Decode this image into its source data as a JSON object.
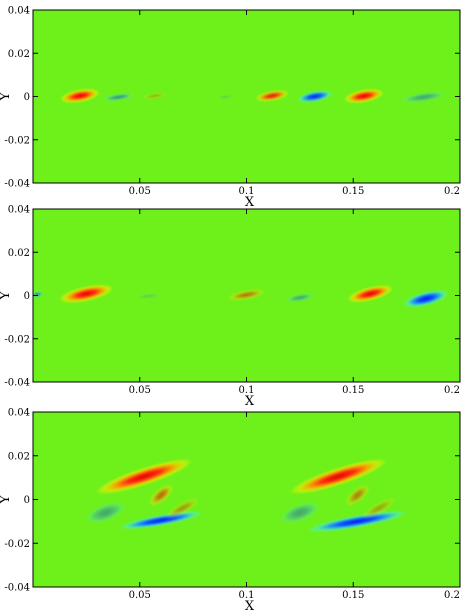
{
  "chart_data": [
    {
      "type": "heatmap",
      "xlabel": "X",
      "ylabel": "Y",
      "xlim": [
        0,
        0.2
      ],
      "ylim": [
        -0.04,
        0.04
      ],
      "xticks": [
        "0.05",
        "0.1",
        "0.15",
        "0.2"
      ],
      "yticks": [
        "0.04",
        "0.02",
        "0",
        "-0.02",
        "-0.04"
      ],
      "background_color": "#6ef01a",
      "blobs": [
        {
          "x": 0.022,
          "y": 0.0003,
          "rx": 0.0095,
          "ry": 0.003,
          "angle": 10,
          "sign": 1,
          "strength": 1.0
        },
        {
          "x": 0.04,
          "y": -0.0003,
          "rx": 0.0075,
          "ry": 0.0016,
          "angle": 8,
          "sign": -1,
          "strength": 0.45
        },
        {
          "x": 0.057,
          "y": 0.0003,
          "rx": 0.006,
          "ry": 0.0012,
          "angle": 8,
          "sign": 1,
          "strength": 0.3
        },
        {
          "x": 0.09,
          "y": -0.0002,
          "rx": 0.004,
          "ry": 0.0008,
          "angle": 5,
          "sign": -1,
          "strength": 0.18
        },
        {
          "x": 0.112,
          "y": 0.0003,
          "rx": 0.008,
          "ry": 0.0024,
          "angle": 10,
          "sign": 1,
          "strength": 0.85
        },
        {
          "x": 0.132,
          "y": 0.0,
          "rx": 0.0085,
          "ry": 0.0025,
          "angle": 10,
          "sign": -1,
          "strength": 0.95
        },
        {
          "x": 0.155,
          "y": 0.0002,
          "rx": 0.0095,
          "ry": 0.003,
          "angle": 10,
          "sign": 1,
          "strength": 1.0
        },
        {
          "x": 0.183,
          "y": -0.0003,
          "rx": 0.011,
          "ry": 0.0022,
          "angle": 8,
          "sign": -1,
          "strength": 0.35
        }
      ]
    },
    {
      "type": "heatmap",
      "xlabel": "X",
      "ylabel": "Y",
      "xlim": [
        0,
        0.2
      ],
      "ylim": [
        -0.04,
        0.04
      ],
      "xticks": [
        "0.05",
        "0.1",
        "0.15",
        "0.2"
      ],
      "yticks": [
        "0.04",
        "0.02",
        "0",
        "-0.02",
        "-0.04"
      ],
      "background_color": "#6ef01a",
      "blobs": [
        {
          "x": 0.002,
          "y": 0.0005,
          "rx": 0.003,
          "ry": 0.0015,
          "angle": 10,
          "sign": -1,
          "strength": 0.5
        },
        {
          "x": 0.025,
          "y": 0.0008,
          "rx": 0.013,
          "ry": 0.0035,
          "angle": 12,
          "sign": 1,
          "strength": 1.0
        },
        {
          "x": 0.054,
          "y": -0.0003,
          "rx": 0.006,
          "ry": 0.0012,
          "angle": 6,
          "sign": -1,
          "strength": 0.15
        },
        {
          "x": 0.1,
          "y": 0.0003,
          "rx": 0.009,
          "ry": 0.0022,
          "angle": 10,
          "sign": 1,
          "strength": 0.5
        },
        {
          "x": 0.125,
          "y": -0.001,
          "rx": 0.007,
          "ry": 0.0018,
          "angle": 10,
          "sign": -1,
          "strength": 0.35
        },
        {
          "x": 0.158,
          "y": 0.0008,
          "rx": 0.011,
          "ry": 0.0032,
          "angle": 14,
          "sign": 1,
          "strength": 1.0
        },
        {
          "x": 0.184,
          "y": -0.0015,
          "rx": 0.011,
          "ry": 0.0032,
          "angle": 14,
          "sign": -1,
          "strength": 1.0
        }
      ]
    },
    {
      "type": "heatmap",
      "xlabel": "X",
      "ylabel": "Y",
      "xlim": [
        0,
        0.2
      ],
      "ylim": [
        -0.04,
        0.04
      ],
      "xticks": [
        "0.05",
        "0.1",
        "0.15",
        "0.2"
      ],
      "yticks": [
        "0.04",
        "0.02",
        "0",
        "-0.02",
        "-0.04"
      ],
      "background_color": "#6ef01a",
      "blobs": [
        {
          "x": 0.052,
          "y": 0.0105,
          "rx": 0.024,
          "ry": 0.004,
          "angle": 18,
          "sign": 1,
          "strength": 1.0
        },
        {
          "x": 0.06,
          "y": 0.002,
          "rx": 0.007,
          "ry": 0.003,
          "angle": 40,
          "sign": 1,
          "strength": 0.55
        },
        {
          "x": 0.034,
          "y": -0.006,
          "rx": 0.01,
          "ry": 0.004,
          "angle": 20,
          "sign": -1,
          "strength": 0.35
        },
        {
          "x": 0.06,
          "y": -0.0095,
          "rx": 0.02,
          "ry": 0.0025,
          "angle": 10,
          "sign": -1,
          "strength": 1.0
        },
        {
          "x": 0.07,
          "y": -0.004,
          "rx": 0.009,
          "ry": 0.0025,
          "angle": 30,
          "sign": 1,
          "strength": 0.35
        },
        {
          "x": 0.143,
          "y": 0.0105,
          "rx": 0.024,
          "ry": 0.004,
          "angle": 18,
          "sign": 1,
          "strength": 1.0
        },
        {
          "x": 0.152,
          "y": 0.002,
          "rx": 0.007,
          "ry": 0.003,
          "angle": 40,
          "sign": 1,
          "strength": 0.45
        },
        {
          "x": 0.125,
          "y": -0.006,
          "rx": 0.01,
          "ry": 0.004,
          "angle": 20,
          "sign": -1,
          "strength": 0.35
        },
        {
          "x": 0.152,
          "y": -0.01,
          "rx": 0.024,
          "ry": 0.0028,
          "angle": 10,
          "sign": -1,
          "strength": 1.0
        },
        {
          "x": 0.162,
          "y": -0.004,
          "rx": 0.009,
          "ry": 0.0025,
          "angle": 30,
          "sign": 1,
          "strength": 0.3
        }
      ]
    }
  ]
}
